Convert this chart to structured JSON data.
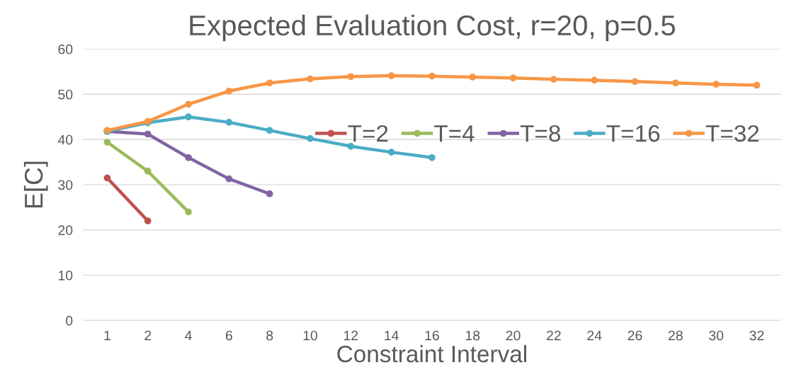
{
  "chart_data": {
    "type": "line",
    "title": "Expected Evaluation Cost, r=20, p=0.5",
    "xlabel": "Constraint Interval",
    "ylabel": "E[C]",
    "categories": [
      "1",
      "2",
      "4",
      "6",
      "8",
      "10",
      "12",
      "14",
      "16",
      "18",
      "20",
      "22",
      "24",
      "26",
      "28",
      "30",
      "32"
    ],
    "series": [
      {
        "name": "T=2",
        "color": "#c0504d",
        "values": [
          31.5,
          22,
          null,
          null,
          null,
          null,
          null,
          null,
          null,
          null,
          null,
          null,
          null,
          null,
          null,
          null,
          null
        ]
      },
      {
        "name": "T=4",
        "color": "#9bbb59",
        "values": [
          39.4,
          33,
          24,
          null,
          null,
          null,
          null,
          null,
          null,
          null,
          null,
          null,
          null,
          null,
          null,
          null,
          null
        ]
      },
      {
        "name": "T=8",
        "color": "#8064a2",
        "values": [
          41.8,
          41.2,
          36,
          31.3,
          28,
          null,
          null,
          null,
          null,
          null,
          null,
          null,
          null,
          null,
          null,
          null,
          null
        ]
      },
      {
        "name": "T=16",
        "color": "#4bacc6",
        "values": [
          41.8,
          43.7,
          45,
          43.8,
          42,
          40.2,
          38.5,
          37.2,
          36,
          null,
          null,
          null,
          null,
          null,
          null,
          null,
          null
        ]
      },
      {
        "name": "T=32",
        "color": "#f79646",
        "values": [
          42,
          44,
          47.8,
          50.7,
          52.5,
          53.4,
          53.9,
          54.1,
          54,
          53.8,
          53.6,
          53.3,
          53.1,
          52.8,
          52.5,
          52.2,
          52
        ]
      }
    ],
    "ylim": [
      0,
      60
    ],
    "yticks": [
      0,
      10,
      20,
      30,
      40,
      50,
      60
    ],
    "grid": "y",
    "legend": "top right",
    "marker": "circle",
    "line_style": "solid"
  }
}
